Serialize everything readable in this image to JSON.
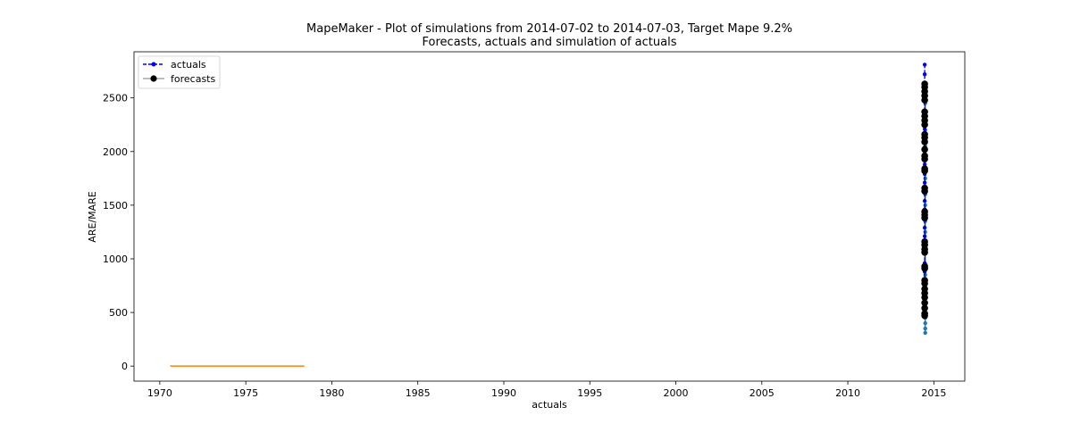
{
  "chart_data": {
    "type": "line",
    "title_line1": "MapeMaker - Plot of simulations from 2014-07-02 to 2014-07-03, Target Mape 9.2%",
    "title_line2": "Forecasts, actuals and simulation of actuals",
    "xlabel": "actuals",
    "ylabel": "ARE/MARE",
    "xlim": [
      1968.5,
      2016.8
    ],
    "ylim": [
      -140,
      2930
    ],
    "xticks": [
      "1970",
      "1975",
      "1980",
      "1985",
      "1990",
      "1995",
      "2000",
      "2005",
      "2010",
      "2015"
    ],
    "xtick_values": [
      1970,
      1975,
      1980,
      1985,
      1990,
      1995,
      2000,
      2005,
      2010,
      2015
    ],
    "yticks": [
      "0",
      "500",
      "1000",
      "1500",
      "2000",
      "2500"
    ],
    "ytick_values": [
      0,
      500,
      1000,
      1500,
      2000,
      2500
    ],
    "legend": {
      "placement": "upper-left",
      "entries": [
        "actuals",
        "forecasts"
      ]
    },
    "colors": {
      "actuals": "#0000ff",
      "forecasts": "#000000",
      "simulation": "#1f77b4",
      "orange": "#ff7f0e"
    },
    "series": [
      {
        "name": "actuals",
        "x_date": 2014.5,
        "values": [
          2810,
          2720,
          2640,
          2550,
          2470,
          2380,
          2300,
          2210,
          2130,
          2040,
          1960,
          1880,
          1790,
          1710,
          1620,
          1540,
          1460,
          1380,
          1290,
          1210,
          1130,
          1050,
          960,
          880,
          800,
          720,
          640,
          560,
          480
        ]
      },
      {
        "name": "forecasts",
        "x_date": 2014.5,
        "values": [
          2630,
          2600,
          2560,
          2520,
          2480,
          2370,
          2330,
          2290,
          2250,
          2160,
          2130,
          2090,
          2020,
          1960,
          1930,
          1840,
          1820,
          1660,
          1630,
          1440,
          1410,
          1380,
          1160,
          1130,
          1090,
          1060,
          930,
          910,
          800,
          770,
          720,
          680,
          640,
          590,
          540,
          490,
          470
        ]
      },
      {
        "x_date": 2014.5,
        "values": [
          2600,
          2450,
          2300,
          2200,
          2050,
          1950,
          1850,
          1750,
          1600,
          1500,
          1350,
          1250,
          1150,
          1050,
          950,
          850,
          750,
          650,
          550,
          450,
          400,
          350,
          310
        ]
      },
      {
        "x": [
          1970.6,
          1978.4
        ],
        "values": [
          0,
          0
        ]
      }
    ]
  }
}
